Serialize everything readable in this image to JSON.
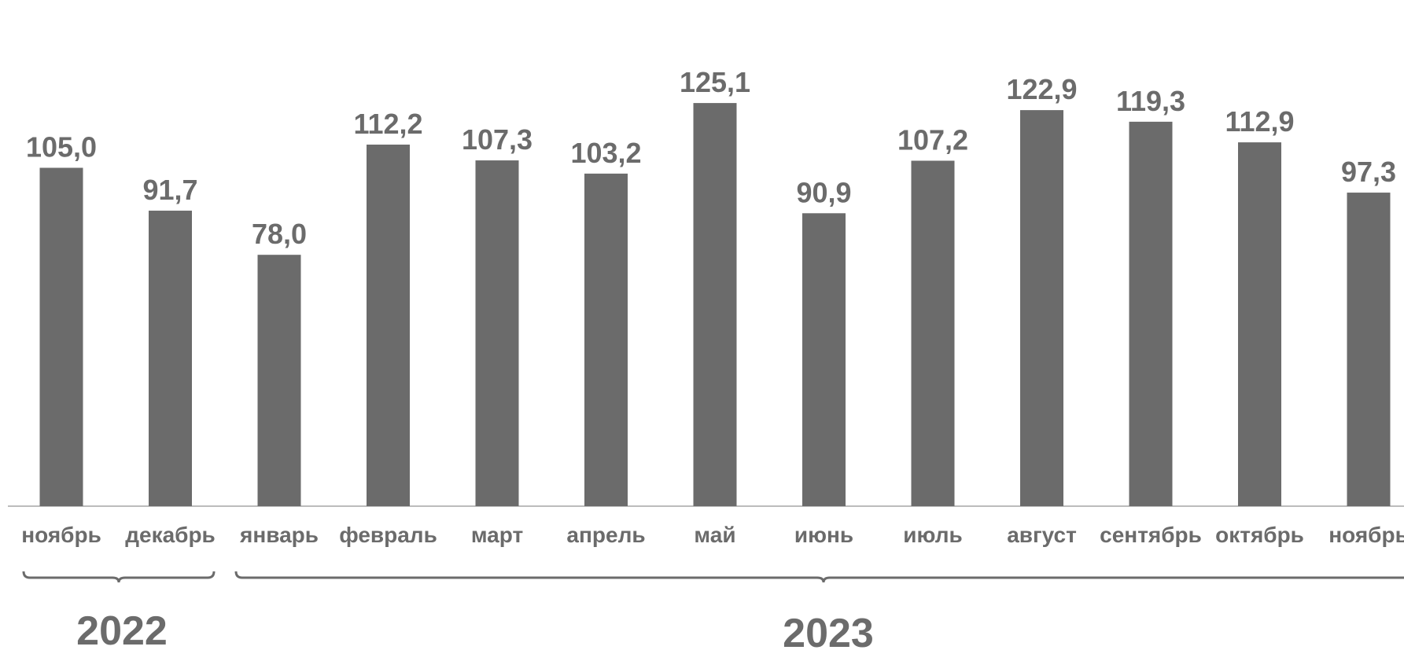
{
  "chart_data": {
    "type": "bar",
    "categories": [
      "ноябрь",
      "декабрь",
      "январь",
      "февраль",
      "март",
      "апрель",
      "май",
      "июнь",
      "июль",
      "август",
      "сентябрь",
      "октябрь",
      "ноябрь"
    ],
    "values": [
      105.0,
      91.7,
      78.0,
      112.2,
      107.3,
      103.2,
      125.1,
      90.9,
      107.2,
      122.9,
      119.3,
      112.9,
      97.3
    ],
    "value_labels": [
      "105,0",
      "91,7",
      "78,0",
      "112,2",
      "107,3",
      "103,2",
      "125,1",
      "90,9",
      "107,2",
      "122,9",
      "119,3",
      "112,9",
      "97,3"
    ],
    "groups": [
      {
        "label": "2022",
        "from": 0,
        "to": 1
      },
      {
        "label": "2023",
        "from": 2,
        "to": 12
      }
    ],
    "ylim": [
      0,
      125.1
    ],
    "grid": false,
    "legend": "none",
    "bar_color": "#6b6b6b",
    "axis_color": "#a6a6a6"
  }
}
